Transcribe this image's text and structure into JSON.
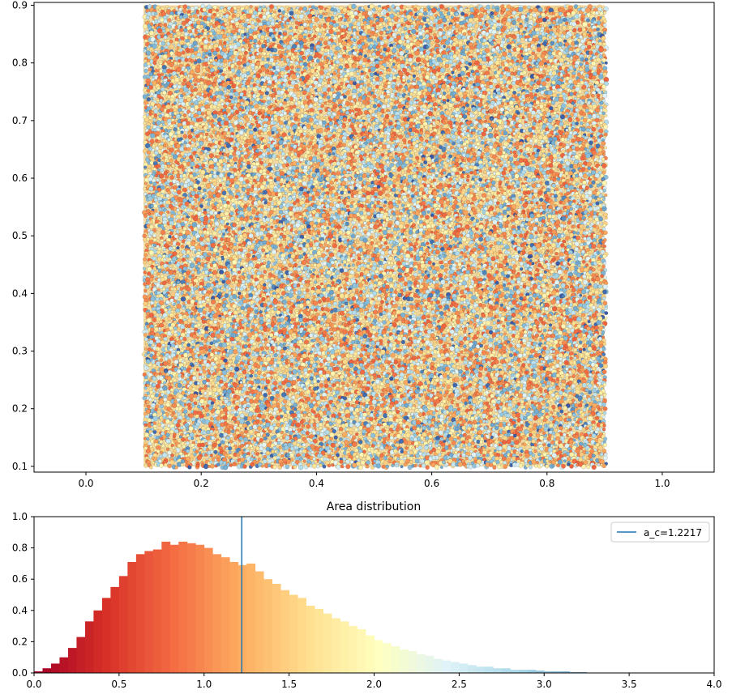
{
  "chart_data": [
    {
      "type": "scatter",
      "title": "",
      "xlabel": "",
      "ylabel": "",
      "xlim": [
        -0.09,
        1.09
      ],
      "ylim": [
        0.09,
        0.905
      ],
      "xticks": [
        0.0,
        0.2,
        0.4,
        0.6,
        0.8,
        1.0
      ],
      "xtick_labels": [
        "0.0",
        "0.2",
        "0.4",
        "0.6",
        "0.8",
        "1.0"
      ],
      "yticks": [
        0.1,
        0.2,
        0.3,
        0.4,
        0.5,
        0.6,
        0.7,
        0.8,
        0.9
      ],
      "ytick_labels": [
        "0.1",
        "0.2",
        "0.3",
        "0.4",
        "0.5",
        "0.6",
        "0.7",
        "0.8",
        "0.9"
      ],
      "region": {
        "x": [
          0.1,
          0.9
        ],
        "y": [
          0.1,
          0.9
        ]
      },
      "colormap": [
        "#a50026",
        "#d73027",
        "#f46d43",
        "#fdae61",
        "#fee090",
        "#ffffbf",
        "#e0f3f8",
        "#abd9e9",
        "#74add1",
        "#4575b4",
        "#313695"
      ],
      "edge_color": "#1a1a1a",
      "grid": false
    },
    {
      "type": "bar",
      "title": "Area distribution",
      "xlabel": "",
      "ylabel": "",
      "xlim": [
        0,
        4
      ],
      "ylim": [
        0,
        1
      ],
      "xticks": [
        0.0,
        0.5,
        1.0,
        1.5,
        2.0,
        2.5,
        3.0,
        3.5,
        4.0
      ],
      "xtick_labels": [
        "0.0",
        "0.5",
        "1.0",
        "1.5",
        "2.0",
        "2.5",
        "3.0",
        "3.5",
        "4.0"
      ],
      "yticks": [
        0.0,
        0.2,
        0.4,
        0.6,
        0.8,
        1.0
      ],
      "ytick_labels": [
        "0.0",
        "0.2",
        "0.4",
        "0.6",
        "0.8",
        "1.0"
      ],
      "bin_width": 0.05,
      "bin_start": 0,
      "values": [
        0.01,
        0.03,
        0.06,
        0.1,
        0.16,
        0.23,
        0.33,
        0.4,
        0.48,
        0.55,
        0.62,
        0.71,
        0.76,
        0.78,
        0.79,
        0.84,
        0.82,
        0.84,
        0.83,
        0.82,
        0.8,
        0.76,
        0.74,
        0.71,
        0.69,
        0.7,
        0.65,
        0.6,
        0.57,
        0.53,
        0.5,
        0.48,
        0.43,
        0.41,
        0.38,
        0.35,
        0.33,
        0.3,
        0.28,
        0.24,
        0.21,
        0.19,
        0.17,
        0.15,
        0.14,
        0.12,
        0.11,
        0.09,
        0.08,
        0.07,
        0.06,
        0.05,
        0.04,
        0.04,
        0.03,
        0.03,
        0.02,
        0.02,
        0.02,
        0.015,
        0.01,
        0.01,
        0.01,
        0.005,
        0.005
      ],
      "vline": {
        "x": 1.2217,
        "color": "#1f77b4"
      },
      "legend": {
        "position": "upper right",
        "entries": [
          "a_c=1.2217"
        ]
      },
      "colormap": [
        "#a50026",
        "#d73027",
        "#f46d43",
        "#fdae61",
        "#fee090",
        "#ffffbf",
        "#e0f3f8",
        "#abd9e9",
        "#74add1"
      ],
      "grid": false
    }
  ]
}
